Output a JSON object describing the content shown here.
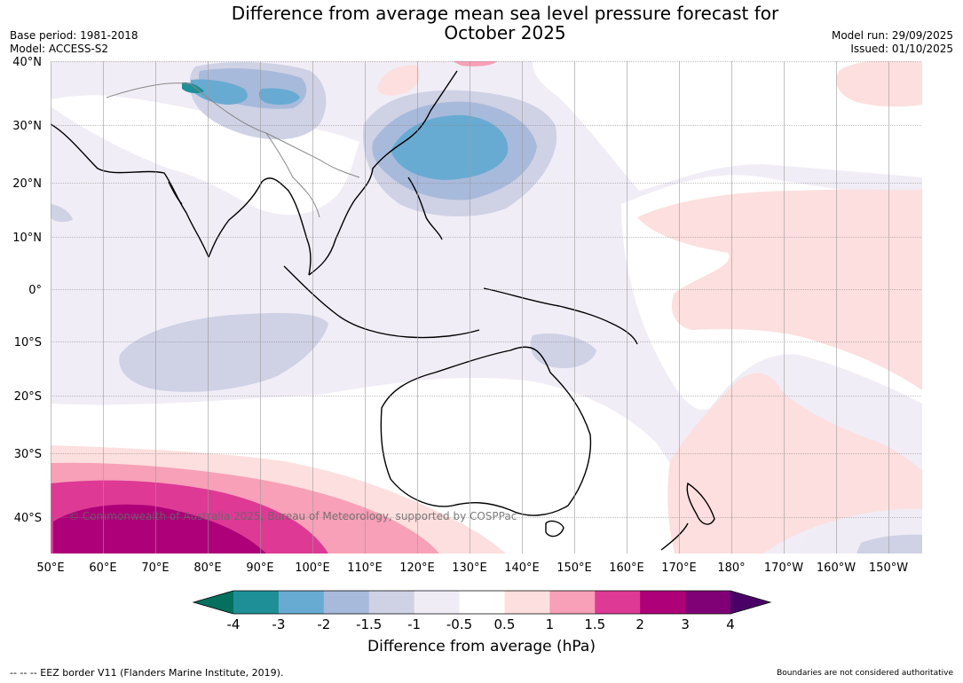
{
  "header": {
    "title_line1": "Difference from average mean sea level pressure forecast for",
    "title_line2": "October 2025",
    "base_period": "Base period: 1981-2018",
    "model": "Model: ACCESS-S2",
    "model_run": "Model run: 29/09/2025",
    "issued": "Issued: 01/10/2025"
  },
  "map": {
    "lat_labels": [
      "40°N",
      "30°N",
      "20°N",
      "10°N",
      "0°",
      "10°S",
      "20°S",
      "30°S",
      "40°S"
    ],
    "lon_labels": [
      "50°E",
      "60°E",
      "70°E",
      "80°E",
      "90°E",
      "100°E",
      "110°E",
      "120°E",
      "130°E",
      "140°E",
      "150°E",
      "160°E",
      "170°E",
      "180°",
      "170°W",
      "160°W",
      "150°W"
    ],
    "copyright": "© Commonwealth of Australia 2025, Bureau of Meteorology, supported by COSPPac"
  },
  "colorbar": {
    "title": "Difference from average (hPa)",
    "tick_labels": [
      "-4",
      "-3",
      "-2",
      "-1.5",
      "-1",
      "-0.5",
      "0.5",
      "1",
      "1.5",
      "2",
      "3",
      "4"
    ],
    "colors": {
      "below_min": "#05705e",
      "bins": [
        "#1e8f96",
        "#68abd2",
        "#a8badb",
        "#cfd1e5",
        "#f0ecf5",
        "#ffffff",
        "#fcdfde",
        "#f7a0b8",
        "#de3995",
        "#ad0079",
        "#7f0175"
      ],
      "above_max": "#4b0068"
    }
  },
  "footer": {
    "left": "--  --  -- EEZ border V11 (Flanders Marine Institute, 2019).",
    "right": "Boundaries are not considered authoritative"
  }
}
